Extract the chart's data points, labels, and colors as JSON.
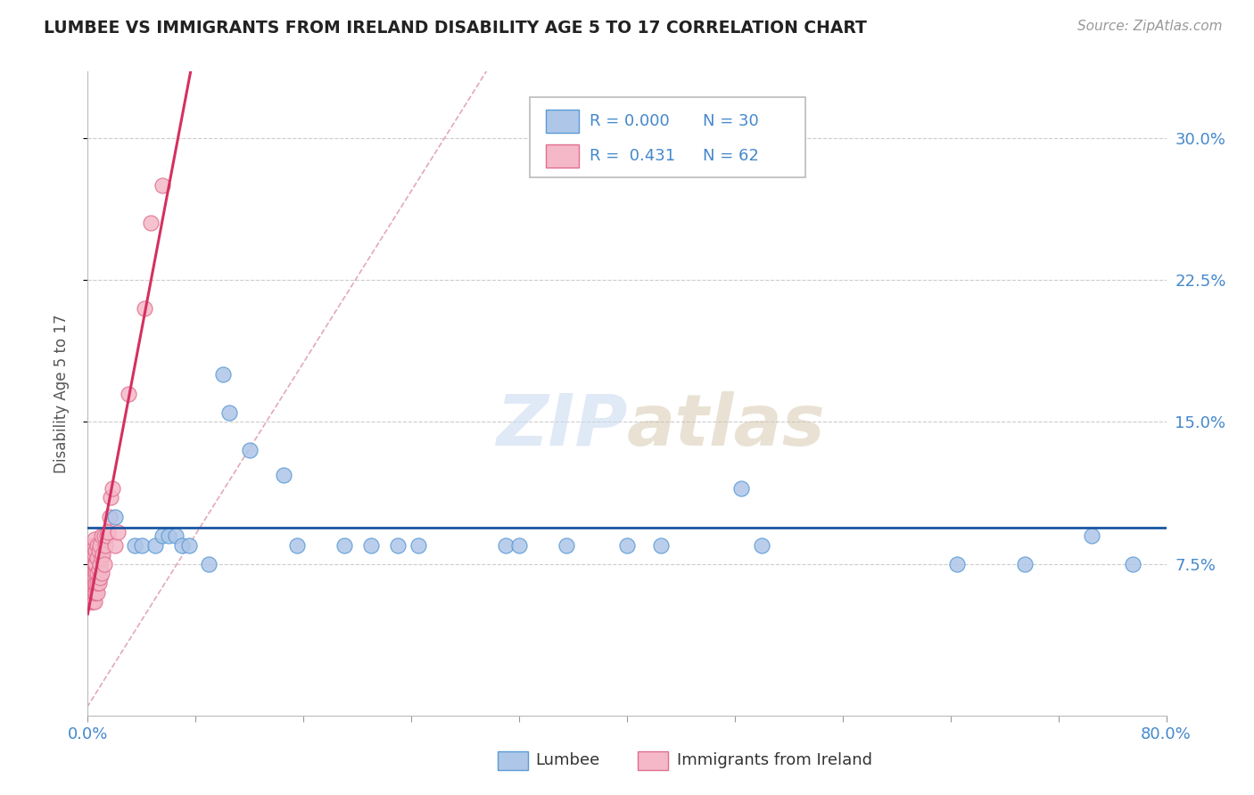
{
  "title": "LUMBEE VS IMMIGRANTS FROM IRELAND DISABILITY AGE 5 TO 17 CORRELATION CHART",
  "source": "Source: ZipAtlas.com",
  "ylabel": "Disability Age 5 to 17",
  "xlim": [
    0.0,
    0.8
  ],
  "ylim": [
    -0.005,
    0.335
  ],
  "ytick_labels": [
    "7.5%",
    "15.0%",
    "22.5%",
    "30.0%"
  ],
  "ytick_values": [
    0.075,
    0.15,
    0.225,
    0.3
  ],
  "grid_color": "#cccccc",
  "background_color": "#ffffff",
  "lumbee_color": "#aec6e8",
  "ireland_color": "#f4b8c8",
  "lumbee_edge_color": "#5b9bd5",
  "ireland_edge_color": "#e07090",
  "trend_blue_color": "#1a56a0",
  "trend_pink_color": "#d43060",
  "diag_color": "#e0a0b0",
  "legend_r_blue": "0.000",
  "legend_n_blue": "30",
  "legend_r_pink": "0.431",
  "legend_n_pink": "62",
  "lumbee_x": [
    0.02,
    0.035,
    0.04,
    0.05,
    0.055,
    0.06,
    0.065,
    0.07,
    0.075,
    0.09,
    0.1,
    0.105,
    0.12,
    0.145,
    0.155,
    0.19,
    0.21,
    0.23,
    0.245,
    0.31,
    0.32,
    0.355,
    0.4,
    0.425,
    0.485,
    0.5,
    0.645,
    0.695,
    0.745,
    0.775
  ],
  "lumbee_y": [
    0.1,
    0.085,
    0.085,
    0.085,
    0.09,
    0.09,
    0.09,
    0.085,
    0.085,
    0.075,
    0.175,
    0.155,
    0.135,
    0.122,
    0.085,
    0.085,
    0.085,
    0.085,
    0.085,
    0.085,
    0.085,
    0.085,
    0.085,
    0.085,
    0.115,
    0.085,
    0.075,
    0.075,
    0.09,
    0.075
  ],
  "ireland_x": [
    0.002,
    0.002,
    0.002,
    0.002,
    0.003,
    0.003,
    0.003,
    0.003,
    0.003,
    0.003,
    0.003,
    0.003,
    0.004,
    0.004,
    0.004,
    0.004,
    0.004,
    0.004,
    0.004,
    0.005,
    0.005,
    0.005,
    0.005,
    0.005,
    0.005,
    0.005,
    0.005,
    0.005,
    0.006,
    0.006,
    0.006,
    0.006,
    0.006,
    0.007,
    0.007,
    0.007,
    0.007,
    0.007,
    0.008,
    0.008,
    0.008,
    0.009,
    0.009,
    0.009,
    0.01,
    0.01,
    0.01,
    0.011,
    0.012,
    0.012,
    0.013,
    0.014,
    0.015,
    0.016,
    0.017,
    0.018,
    0.02,
    0.022,
    0.03,
    0.042,
    0.047,
    0.055
  ],
  "ireland_y": [
    0.055,
    0.06,
    0.065,
    0.07,
    0.055,
    0.058,
    0.062,
    0.066,
    0.07,
    0.075,
    0.08,
    0.085,
    0.055,
    0.06,
    0.065,
    0.07,
    0.075,
    0.08,
    0.085,
    0.055,
    0.06,
    0.065,
    0.068,
    0.072,
    0.075,
    0.08,
    0.084,
    0.088,
    0.06,
    0.065,
    0.07,
    0.075,
    0.082,
    0.06,
    0.065,
    0.07,
    0.078,
    0.085,
    0.065,
    0.072,
    0.082,
    0.068,
    0.075,
    0.085,
    0.07,
    0.078,
    0.09,
    0.08,
    0.075,
    0.09,
    0.085,
    0.09,
    0.092,
    0.1,
    0.11,
    0.115,
    0.085,
    0.092,
    0.165,
    0.21,
    0.255,
    0.275
  ]
}
